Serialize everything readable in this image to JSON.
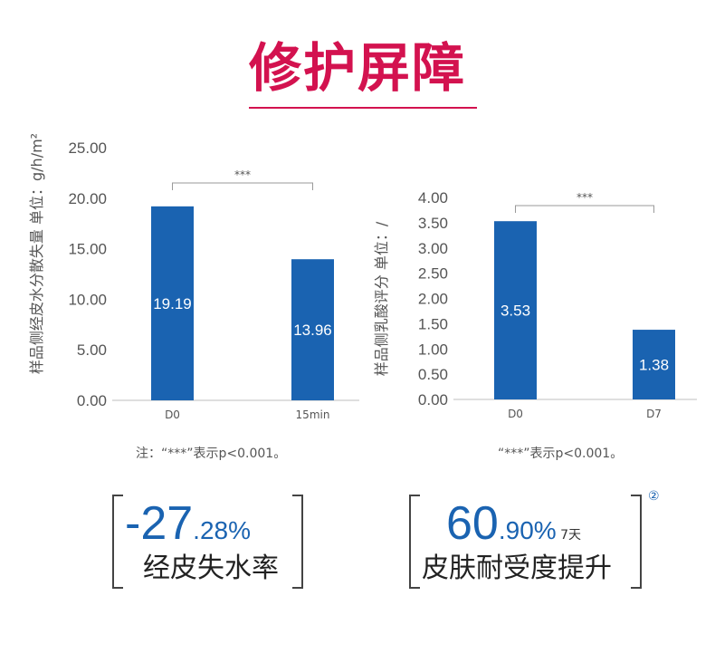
{
  "title": "修护屏障",
  "chart_data": [
    {
      "type": "bar",
      "categories": [
        "D0",
        "15min"
      ],
      "values": [
        19.19,
        13.96
      ],
      "value_labels": [
        "19.19",
        "13.96"
      ],
      "ylabel": "样品侧经皮水分散失量 单位：g/h/m²",
      "ylim": [
        0,
        25
      ],
      "yticks": [
        "0.00",
        "5.00",
        "10.00",
        "15.00",
        "20.00",
        "25.00"
      ],
      "significance": "***",
      "color": "#1a63b1"
    },
    {
      "type": "bar",
      "categories": [
        "D0",
        "D7"
      ],
      "values": [
        3.53,
        1.38
      ],
      "value_labels": [
        "3.53",
        "1.38"
      ],
      "ylabel": "样品侧乳酸评分 单位：/",
      "ylim": [
        0,
        4
      ],
      "yticks": [
        "0.00",
        "0.50",
        "1.00",
        "1.50",
        "2.00",
        "2.50",
        "3.00",
        "3.50",
        "4.00"
      ],
      "significance": "***",
      "color": "#1a63b1"
    }
  ],
  "notes": {
    "left": "注：“***”表示p<0.001。",
    "right": "“***”表示p<0.001。"
  },
  "stats": {
    "left": {
      "big": "-27",
      "dot": ".",
      "small": "28%",
      "caption": "经皮失水率"
    },
    "right": {
      "big": "60",
      "dot": ".",
      "small": "90%",
      "suffix": "7天",
      "caption": "皮肤耐受度提升",
      "footnote": "②"
    }
  }
}
